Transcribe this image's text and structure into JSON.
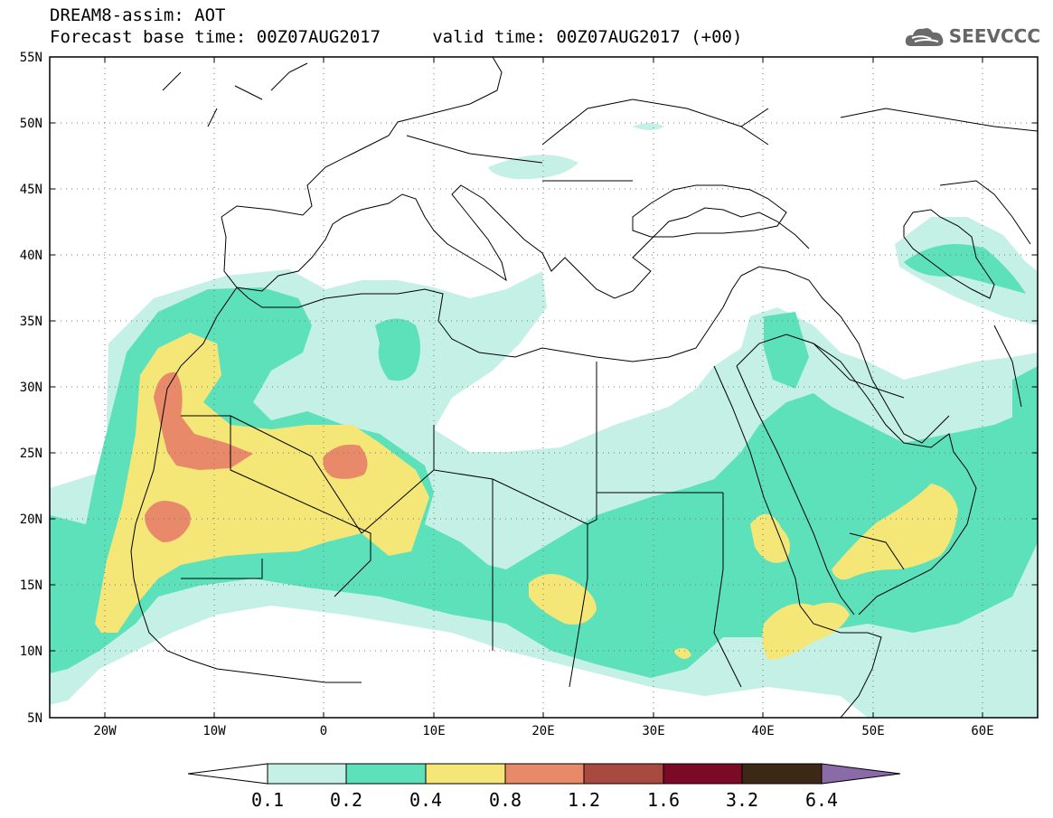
{
  "header": {
    "title_line1": "DREAM8-assim: AOT",
    "title_line2": "Forecast base time: 00Z07AUG2017     valid time: 00Z07AUG2017 (+00)",
    "logo_text": "SEEVCCC",
    "logo_icon": "cloud-icon"
  },
  "map": {
    "variable": "Aerosol optical thickness",
    "lon_range": [
      -25,
      65
    ],
    "lat_range": [
      5,
      55
    ],
    "lat_ticks": [
      {
        "value": 55,
        "label": "55N"
      },
      {
        "value": 50,
        "label": "50N"
      },
      {
        "value": 45,
        "label": "45N"
      },
      {
        "value": 40,
        "label": "40N"
      },
      {
        "value": 35,
        "label": "35N"
      },
      {
        "value": 30,
        "label": "30N"
      },
      {
        "value": 25,
        "label": "25N"
      },
      {
        "value": 20,
        "label": "20N"
      },
      {
        "value": 15,
        "label": "15N"
      },
      {
        "value": 10,
        "label": "10N"
      },
      {
        "value": 5,
        "label": "5N"
      }
    ],
    "lon_ticks": [
      {
        "value": -20,
        "label": "20W"
      },
      {
        "value": -10,
        "label": "10W"
      },
      {
        "value": 0,
        "label": "0"
      },
      {
        "value": 10,
        "label": "10E"
      },
      {
        "value": 20,
        "label": "20E"
      },
      {
        "value": 30,
        "label": "30E"
      },
      {
        "value": 40,
        "label": "40E"
      },
      {
        "value": 50,
        "label": "50E"
      },
      {
        "value": 60,
        "label": "60E"
      }
    ],
    "grid": true,
    "coastline_color": "#000000"
  },
  "colorbar": {
    "levels": [
      "0.1",
      "0.2",
      "0.4",
      "0.8",
      "1.2",
      "1.6",
      "3.2",
      "6.4"
    ],
    "under_color": "#ffffff",
    "bin_colors": [
      "#c4f0e6",
      "#5ce1bb",
      "#f5e678",
      "#e8896a",
      "#a84a3f",
      "#7a0a26",
      "#3c2815"
    ],
    "over_color": "#8b6aa8"
  }
}
